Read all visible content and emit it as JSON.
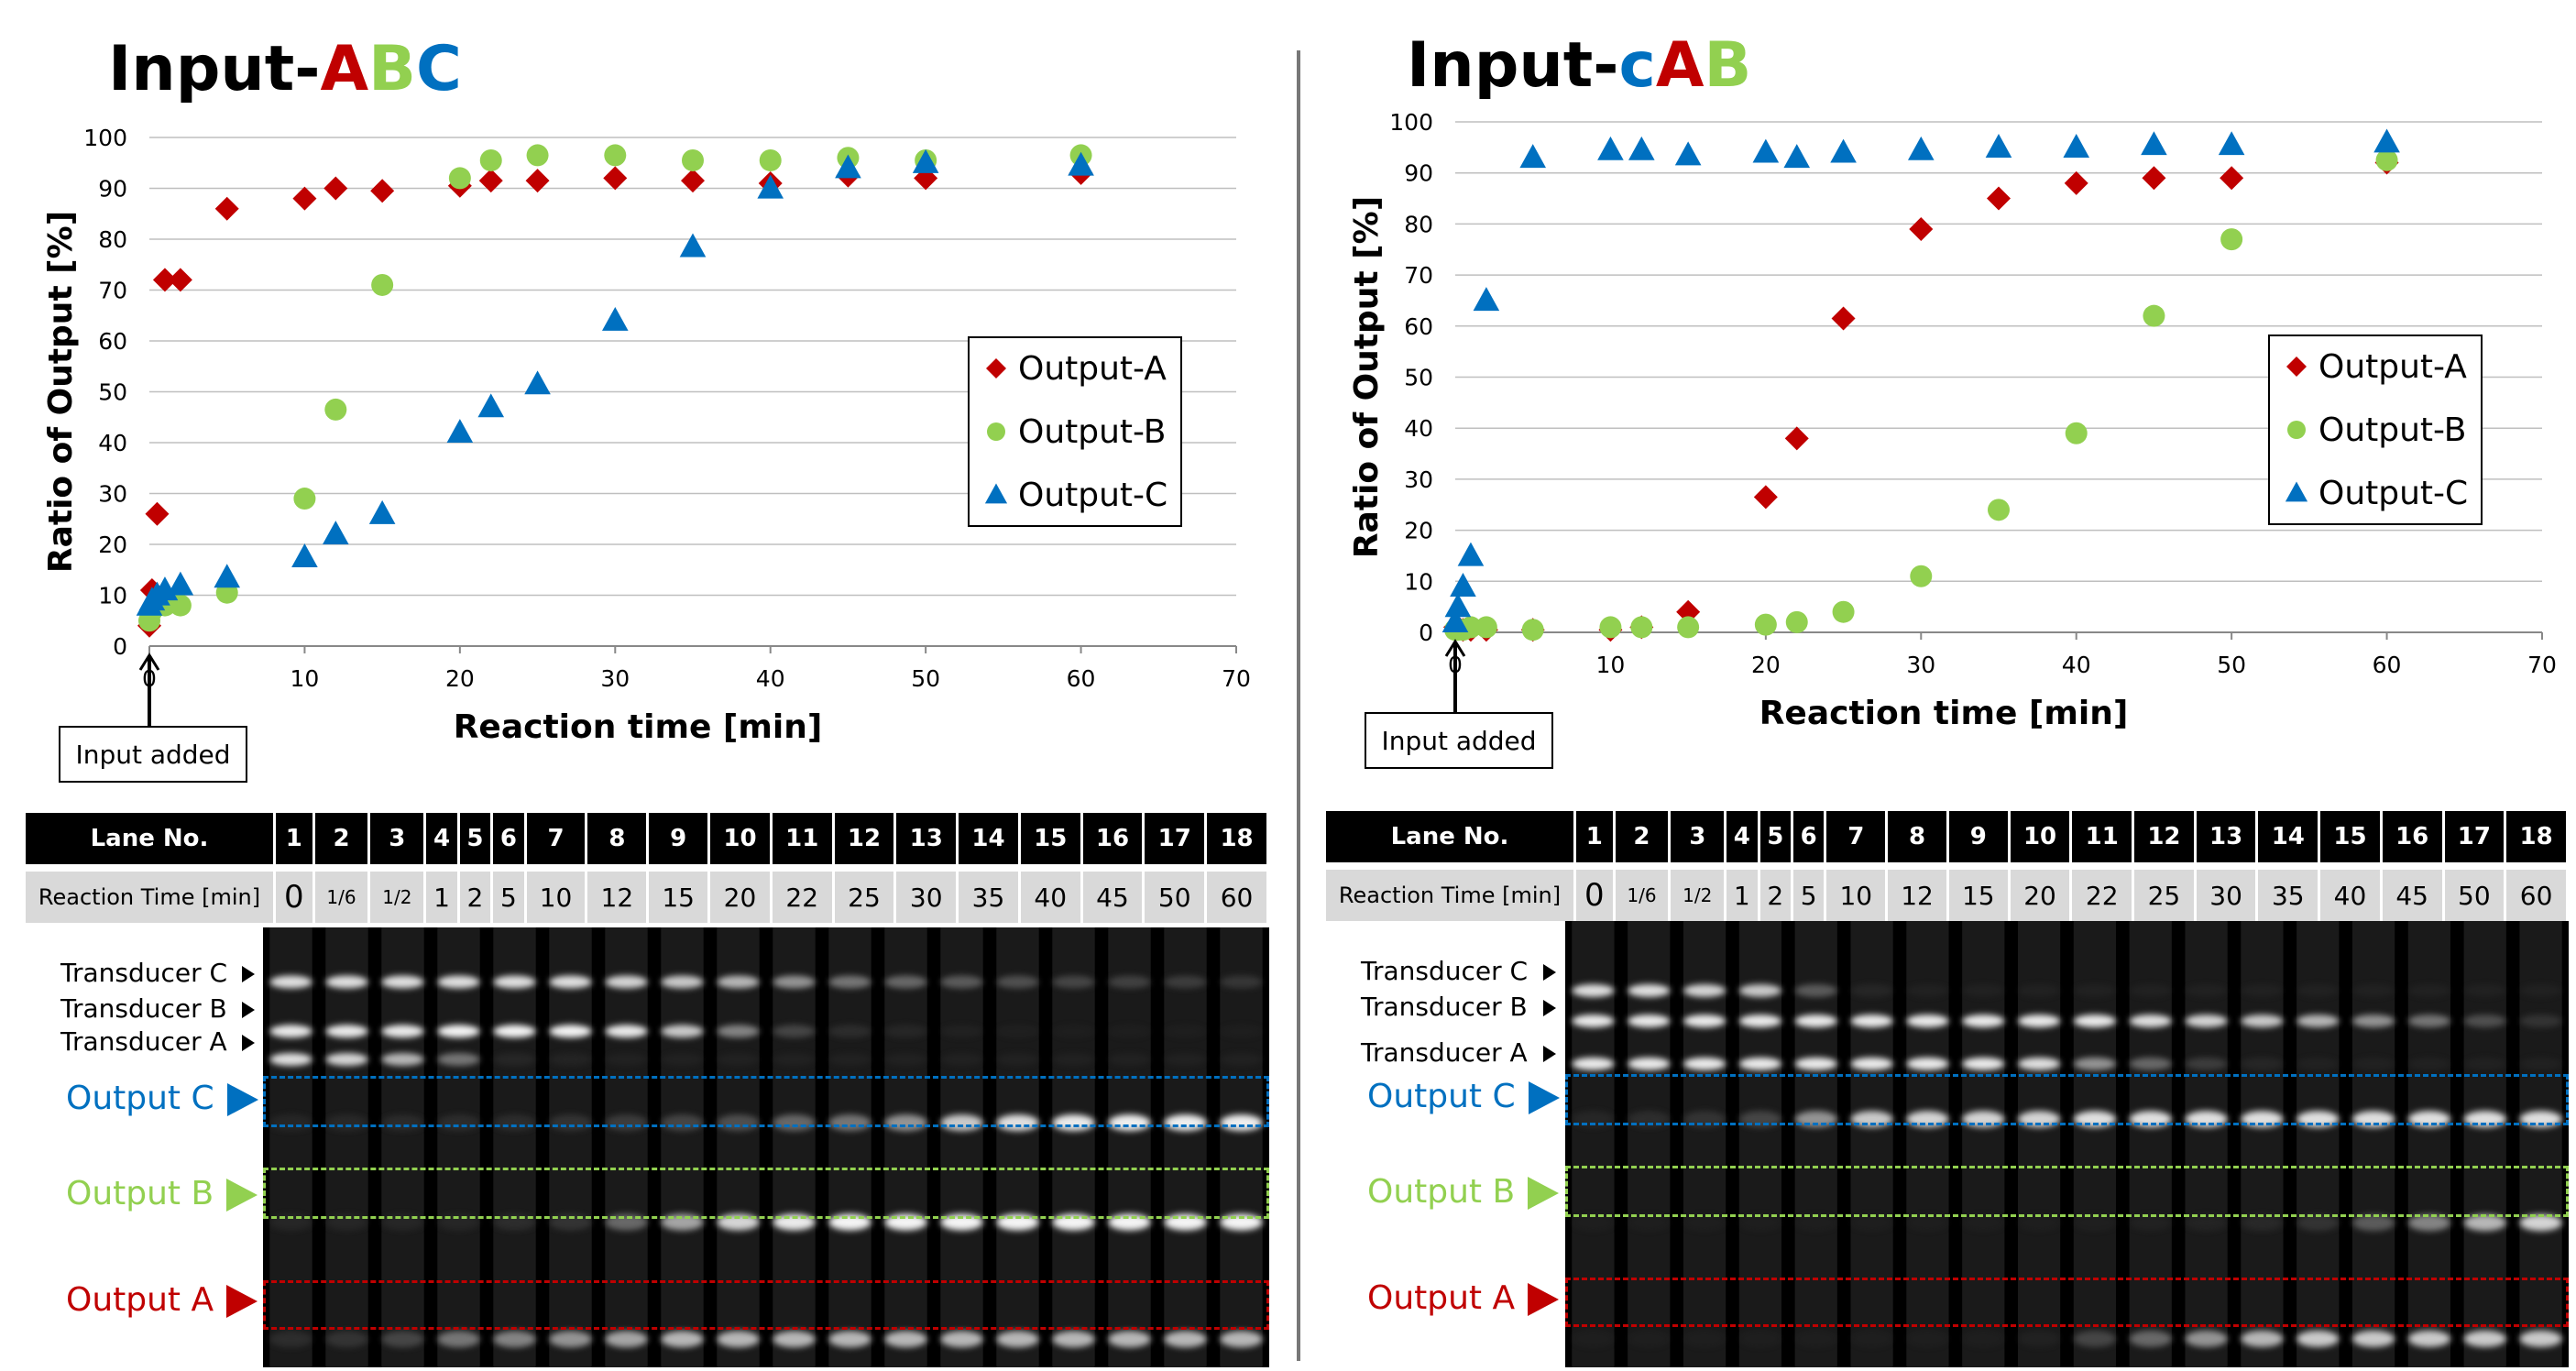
{
  "colors": {
    "output_a": "#c00000",
    "output_b": "#92d050",
    "output_c": "#0070c0",
    "grid": "#bfbfbf",
    "gel_bg": "#000000"
  },
  "legend_labels": [
    "Output-A",
    "Output-B",
    "Output-C"
  ],
  "chart_data": [
    {
      "type": "scatter",
      "title_parts": [
        {
          "text": "Input-",
          "color": "#000000"
        },
        {
          "text": "A",
          "color": "#c00000"
        },
        {
          "text": "B",
          "color": "#92d050"
        },
        {
          "text": "C",
          "color": "#0070c0"
        }
      ],
      "xlabel": "Reaction time [min]",
      "ylabel": "Ratio of  Output [%]",
      "xlim": [
        0,
        70
      ],
      "ylim": [
        0,
        100
      ],
      "xticks": [
        0,
        10,
        20,
        30,
        40,
        50,
        60,
        70
      ],
      "yticks": [
        0,
        10,
        20,
        30,
        40,
        50,
        60,
        70,
        80,
        90,
        100
      ],
      "legend": "right-middle",
      "grid": "horizontal",
      "annotation": "Input added",
      "series": [
        {
          "name": "Output-A",
          "marker": "diamond",
          "color": "#c00000",
          "x": [
            0,
            0.17,
            0.5,
            1,
            2,
            5,
            10,
            12,
            15,
            20,
            22,
            25,
            30,
            35,
            40,
            45,
            50,
            60
          ],
          "y": [
            4,
            11,
            26,
            72,
            72,
            86,
            88,
            90,
            89.5,
            90.5,
            91.5,
            91.5,
            92,
            91.5,
            91,
            92.5,
            92,
            93
          ]
        },
        {
          "name": "Output-B",
          "marker": "circle",
          "color": "#92d050",
          "x": [
            0,
            0.17,
            0.5,
            1,
            2,
            5,
            10,
            12,
            15,
            20,
            22,
            25,
            30,
            35,
            40,
            45,
            50,
            60
          ],
          "y": [
            5,
            7,
            8,
            8,
            8,
            10.5,
            29,
            46.5,
            71,
            92,
            95.5,
            96.5,
            96.5,
            95.5,
            95.5,
            96,
            95.5,
            96.5
          ]
        },
        {
          "name": "Output-C",
          "marker": "triangle",
          "color": "#0070c0",
          "x": [
            0,
            0.17,
            0.5,
            1,
            2,
            5,
            10,
            12,
            15,
            20,
            22,
            25,
            30,
            35,
            40,
            45,
            50,
            60
          ],
          "y": [
            8,
            9,
            10,
            11,
            12,
            13.5,
            17.5,
            22,
            26,
            42,
            47,
            51.5,
            64,
            78.5,
            90,
            94,
            95,
            94.5
          ]
        }
      ]
    },
    {
      "type": "scatter",
      "title_parts": [
        {
          "text": "Input-",
          "color": "#000000"
        },
        {
          "text": "c",
          "color": "#0070c0"
        },
        {
          "text": "A",
          "color": "#c00000"
        },
        {
          "text": "B",
          "color": "#92d050"
        }
      ],
      "xlabel": "Reaction time [min]",
      "ylabel": "Ratio of  Output [%]",
      "xlim": [
        0,
        70
      ],
      "ylim": [
        0,
        100
      ],
      "xticks": [
        0,
        10,
        20,
        30,
        40,
        50,
        60,
        70
      ],
      "yticks": [
        0,
        10,
        20,
        30,
        40,
        50,
        60,
        70,
        80,
        90,
        100
      ],
      "legend": "right-middle",
      "grid": "horizontal",
      "annotation": "Input added",
      "series": [
        {
          "name": "Output-A",
          "marker": "diamond",
          "color": "#c00000",
          "x": [
            0,
            0.17,
            0.5,
            1,
            2,
            5,
            10,
            12,
            15,
            20,
            22,
            25,
            30,
            35,
            40,
            45,
            50,
            60
          ],
          "y": [
            1,
            1,
            0.5,
            0.5,
            0.5,
            0.5,
            0.5,
            1,
            4,
            26.5,
            38,
            61.5,
            79,
            85,
            88,
            89,
            89,
            92
          ]
        },
        {
          "name": "Output-B",
          "marker": "circle",
          "color": "#92d050",
          "x": [
            0,
            0.17,
            0.5,
            1,
            2,
            5,
            10,
            12,
            15,
            20,
            22,
            25,
            30,
            35,
            40,
            45,
            50,
            60
          ],
          "y": [
            0.5,
            0.5,
            0.5,
            1,
            1,
            0.5,
            1,
            1,
            1,
            1.5,
            2,
            4,
            11,
            24,
            39,
            62,
            77,
            92.5
          ]
        },
        {
          "name": "Output-C",
          "marker": "triangle",
          "color": "#0070c0",
          "x": [
            0,
            0.17,
            0.5,
            1,
            2,
            5,
            10,
            12,
            15,
            20,
            22,
            25,
            30,
            35,
            40,
            45,
            50,
            60
          ],
          "y": [
            2,
            5,
            9,
            15,
            65,
            93,
            94.5,
            94.5,
            93.5,
            94,
            93,
            94,
            94.5,
            95,
            95,
            95.5,
            95.5,
            96
          ]
        }
      ]
    }
  ],
  "gels": [
    {
      "lane_header": "Lane No.",
      "time_header": "Reaction Time [min]",
      "lanes": [
        "1",
        "2",
        "3",
        "4",
        "5",
        "6",
        "7",
        "8",
        "9",
        "10",
        "11",
        "12",
        "13",
        "14",
        "15",
        "16",
        "17",
        "18"
      ],
      "times": [
        "0",
        "1/6",
        "1/2",
        "1",
        "2",
        "5",
        "10",
        "12",
        "15",
        "20",
        "22",
        "25",
        "30",
        "35",
        "40",
        "45",
        "50",
        "60"
      ],
      "band_labels": [
        "Transducer C",
        "Transducer B",
        "Transducer A"
      ],
      "output_labels": [
        "Output C",
        "Output B",
        "Output A"
      ],
      "intensity": {
        "trans_c": [
          0.85,
          0.85,
          0.85,
          0.85,
          0.85,
          0.85,
          0.8,
          0.75,
          0.7,
          0.6,
          0.5,
          0.45,
          0.4,
          0.35,
          0.3,
          0.28,
          0.25,
          0.22
        ],
        "trans_b": [
          0.9,
          0.9,
          0.9,
          0.95,
          0.95,
          0.95,
          0.9,
          0.75,
          0.55,
          0.3,
          0.15,
          0.1,
          0.05,
          0.03,
          0.02,
          0.02,
          0.02,
          0.02
        ],
        "trans_a": [
          0.85,
          0.8,
          0.7,
          0.5,
          0.1,
          0.08,
          0.05,
          0.05,
          0.05,
          0.05,
          0.05,
          0.05,
          0.05,
          0.05,
          0.05,
          0.05,
          0.05,
          0.05
        ],
        "out_c": [
          0.1,
          0.12,
          0.14,
          0.15,
          0.15,
          0.2,
          0.25,
          0.3,
          0.35,
          0.45,
          0.5,
          0.6,
          0.75,
          0.85,
          0.9,
          0.92,
          0.92,
          0.92
        ],
        "out_b": [
          0.1,
          0.1,
          0.1,
          0.1,
          0.15,
          0.2,
          0.45,
          0.65,
          0.8,
          0.9,
          0.95,
          0.95,
          0.95,
          0.95,
          0.95,
          0.95,
          0.95,
          0.95
        ],
        "out_a": [
          0.15,
          0.2,
          0.3,
          0.5,
          0.55,
          0.6,
          0.65,
          0.7,
          0.7,
          0.7,
          0.7,
          0.7,
          0.7,
          0.7,
          0.7,
          0.7,
          0.7,
          0.7
        ]
      }
    },
    {
      "lane_header": "Lane No.",
      "time_header": "Reaction Time [min]",
      "lanes": [
        "1",
        "2",
        "3",
        "4",
        "5",
        "6",
        "7",
        "8",
        "9",
        "10",
        "11",
        "12",
        "13",
        "14",
        "15",
        "16",
        "17",
        "18"
      ],
      "times": [
        "0",
        "1/6",
        "1/2",
        "1",
        "2",
        "5",
        "10",
        "12",
        "15",
        "20",
        "22",
        "25",
        "30",
        "35",
        "40",
        "45",
        "50",
        "60"
      ],
      "band_labels": [
        "Transducer C",
        "Transducer B",
        "Transducer A"
      ],
      "output_labels": [
        "Output C",
        "Output B",
        "Output A"
      ],
      "intensity": {
        "trans_c": [
          0.85,
          0.85,
          0.8,
          0.75,
          0.4,
          0.1,
          0.05,
          0.05,
          0.05,
          0.05,
          0.05,
          0.05,
          0.05,
          0.05,
          0.05,
          0.05,
          0.05,
          0.05
        ],
        "trans_b": [
          0.9,
          0.9,
          0.9,
          0.9,
          0.9,
          0.9,
          0.9,
          0.9,
          0.9,
          0.9,
          0.85,
          0.8,
          0.75,
          0.7,
          0.6,
          0.5,
          0.35,
          0.2
        ],
        "trans_a": [
          0.9,
          0.9,
          0.9,
          0.9,
          0.9,
          0.9,
          0.9,
          0.9,
          0.85,
          0.6,
          0.45,
          0.25,
          0.1,
          0.05,
          0.05,
          0.05,
          0.05,
          0.05
        ],
        "out_c": [
          0.1,
          0.15,
          0.2,
          0.3,
          0.6,
          0.75,
          0.8,
          0.8,
          0.8,
          0.85,
          0.85,
          0.85,
          0.85,
          0.85,
          0.85,
          0.85,
          0.85,
          0.85
        ],
        "out_b": [
          0.02,
          0.02,
          0.02,
          0.02,
          0.02,
          0.02,
          0.02,
          0.02,
          0.02,
          0.03,
          0.05,
          0.08,
          0.12,
          0.2,
          0.4,
          0.55,
          0.7,
          0.8
        ],
        "out_a": [
          0.02,
          0.02,
          0.02,
          0.02,
          0.02,
          0.02,
          0.02,
          0.02,
          0.05,
          0.3,
          0.45,
          0.6,
          0.7,
          0.75,
          0.75,
          0.75,
          0.75,
          0.75
        ]
      }
    }
  ]
}
